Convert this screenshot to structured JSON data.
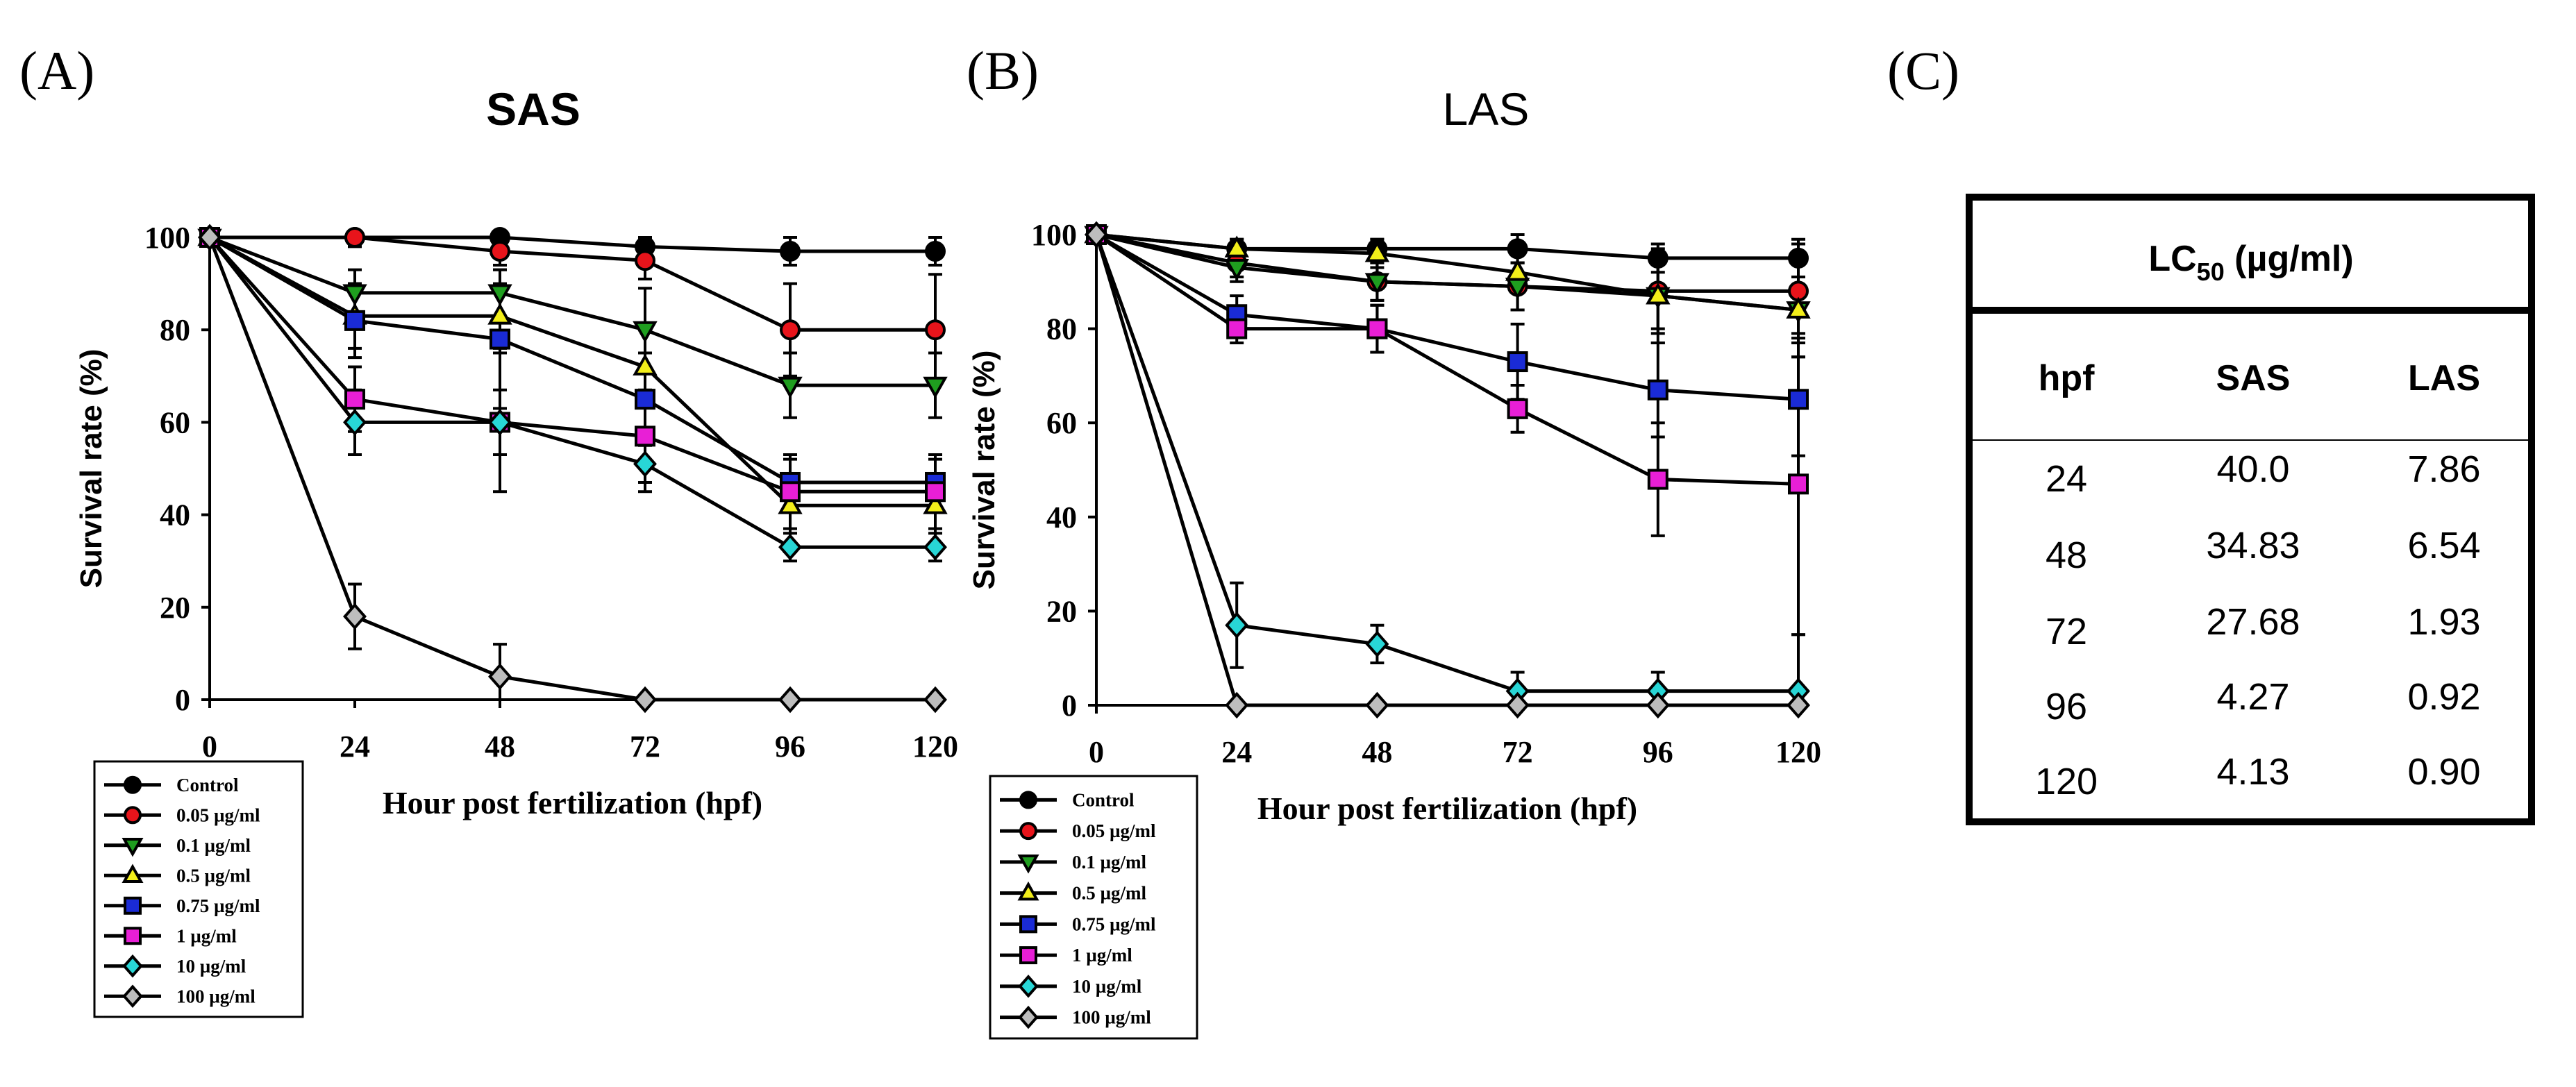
{
  "panels": {
    "a": {
      "letter": "(A)"
    },
    "b": {
      "letter": "(B)"
    },
    "c": {
      "letter": "(C)"
    }
  },
  "legend_labels": [
    "Control",
    "0.05 µg/ml",
    "0.1 µg/ml",
    "0.5 µg/ml",
    "0.75 µg/ml",
    "1 µg/ml",
    "10 µg/ml",
    "100 µg/ml"
  ],
  "chart_data": [
    {
      "type": "line",
      "title": "SAS",
      "xlabel": "Hour post fertilization (hpf)",
      "ylabel": "Survival rate (%)",
      "x": [
        0,
        24,
        48,
        72,
        96,
        120
      ],
      "xticks": [
        "0",
        "24",
        "48",
        "72",
        "96",
        "120"
      ],
      "yticks": [
        "0",
        "20",
        "40",
        "60",
        "80",
        "100"
      ],
      "xlim": [
        0,
        120
      ],
      "ylim": [
        0,
        100
      ],
      "series": [
        {
          "name": "Control",
          "values": [
            100,
            100,
            100,
            98,
            97,
            97
          ],
          "err": [
            0,
            0,
            2,
            2,
            3,
            3
          ],
          "color": "#000000",
          "marker": "circle"
        },
        {
          "name": "0.05 µg/ml",
          "values": [
            100,
            100,
            97,
            95,
            80,
            80
          ],
          "err": [
            0,
            2,
            3,
            4,
            10,
            12
          ],
          "color": "#e8141b",
          "marker": "circle"
        },
        {
          "name": "0.1 µg/ml",
          "values": [
            100,
            88,
            88,
            80,
            68,
            68
          ],
          "err": [
            0,
            5,
            5,
            9,
            7,
            7
          ],
          "color": "#1f9e1f",
          "marker": "tri-down"
        },
        {
          "name": "0.5 µg/ml",
          "values": [
            100,
            83,
            83,
            72,
            42,
            42
          ],
          "err": [
            0,
            7,
            7,
            8,
            10,
            10
          ],
          "color": "#f2ee1a",
          "marker": "tri-up"
        },
        {
          "name": "0.75 µg/ml",
          "values": [
            100,
            82,
            78,
            65,
            47,
            47
          ],
          "err": [
            0,
            8,
            15,
            10,
            6,
            6
          ],
          "color": "#1a2bd6",
          "marker": "square"
        },
        {
          "name": "1 µg/ml",
          "values": [
            100,
            65,
            60,
            57,
            45,
            45
          ],
          "err": [
            0,
            7,
            15,
            10,
            8,
            8
          ],
          "color": "#e81fd6",
          "marker": "square"
        },
        {
          "name": "10 µg/ml",
          "values": [
            100,
            60,
            60,
            51,
            33,
            33
          ],
          "err": [
            0,
            7,
            7,
            6,
            3,
            3
          ],
          "color": "#28d6d6",
          "marker": "diamond"
        },
        {
          "name": "100 µg/ml",
          "values": [
            100,
            18,
            5,
            0,
            0,
            0
          ],
          "err": [
            0,
            7,
            7,
            0,
            0,
            0
          ],
          "color": "#bdbdbd",
          "marker": "diamond"
        }
      ]
    },
    {
      "type": "line",
      "title": "LAS",
      "xlabel": "Hour post fertilization (hpf)",
      "ylabel": "Survival rate (%)",
      "x": [
        0,
        24,
        48,
        72,
        96,
        120
      ],
      "xticks": [
        "0",
        "24",
        "48",
        "72",
        "96",
        "120"
      ],
      "yticks": [
        "0",
        "20",
        "40",
        "60",
        "80",
        "100"
      ],
      "xlim": [
        0,
        120
      ],
      "ylim": [
        0,
        100
      ],
      "series": [
        {
          "name": "Control",
          "values": [
            100,
            97,
            97,
            97,
            95,
            95
          ],
          "err": [
            0,
            2,
            2,
            3,
            3,
            4
          ],
          "color": "#000000",
          "marker": "circle"
        },
        {
          "name": "0.05 µg/ml",
          "values": [
            100,
            94,
            90,
            89,
            88,
            88
          ],
          "err": [
            0,
            3,
            4,
            5,
            8,
            10
          ],
          "color": "#e8141b",
          "marker": "circle"
        },
        {
          "name": "0.1 µg/ml",
          "values": [
            100,
            93,
            90,
            89,
            87,
            84
          ],
          "err": [
            0,
            3,
            4,
            5,
            10,
            10
          ],
          "color": "#1f9e1f",
          "marker": "tri-down"
        },
        {
          "name": "0.5 µg/ml",
          "values": [
            100,
            97,
            96,
            92,
            87,
            84
          ],
          "err": [
            0,
            2,
            3,
            4,
            8,
            10
          ],
          "color": "#f2ee1a",
          "marker": "tri-up"
        },
        {
          "name": "0.75 µg/ml",
          "values": [
            100,
            83,
            80,
            73,
            67,
            65
          ],
          "err": [
            0,
            4,
            5,
            8,
            10,
            12
          ],
          "color": "#1a2bd6",
          "marker": "square"
        },
        {
          "name": "1 µg/ml",
          "values": [
            100,
            80,
            80,
            63,
            48,
            47
          ],
          "err": [
            0,
            3,
            5,
            5,
            12,
            32
          ],
          "color": "#e81fd6",
          "marker": "square"
        },
        {
          "name": "10 µg/ml",
          "values": [
            100,
            17,
            13,
            3,
            3,
            3
          ],
          "err": [
            0,
            9,
            4,
            4,
            4,
            12
          ],
          "color": "#28d6d6",
          "marker": "diamond"
        },
        {
          "name": "100 µg/ml",
          "values": [
            100,
            0,
            0,
            0,
            0,
            0
          ],
          "err": [
            0,
            0,
            0,
            0,
            0,
            0
          ],
          "color": "#bdbdbd",
          "marker": "diamond"
        }
      ]
    }
  ],
  "table": {
    "title_main": "LC",
    "title_sub": "50",
    "title_unit": " (µg/ml)",
    "headers": [
      "hpf",
      "SAS",
      "LAS"
    ],
    "rows": [
      [
        "24",
        "40.0",
        "7.86"
      ],
      [
        "48",
        "34.83",
        "6.54"
      ],
      [
        "72",
        "27.68",
        "1.93"
      ],
      [
        "96",
        "4.27",
        "0.92"
      ],
      [
        "120",
        "4.13",
        "0.90"
      ]
    ]
  }
}
